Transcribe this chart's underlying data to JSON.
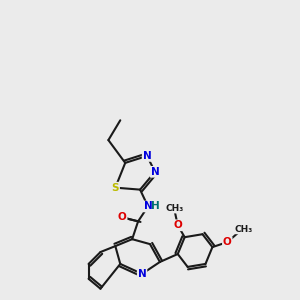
{
  "background_color": "#ebebeb",
  "bond_color": "#1a1a1a",
  "atom_colors": {
    "N": "#0000dd",
    "O": "#dd0000",
    "S": "#bbbb00",
    "C": "#1a1a1a",
    "H": "#007070"
  },
  "figsize": [
    3.0,
    3.0
  ],
  "dpi": 100
}
